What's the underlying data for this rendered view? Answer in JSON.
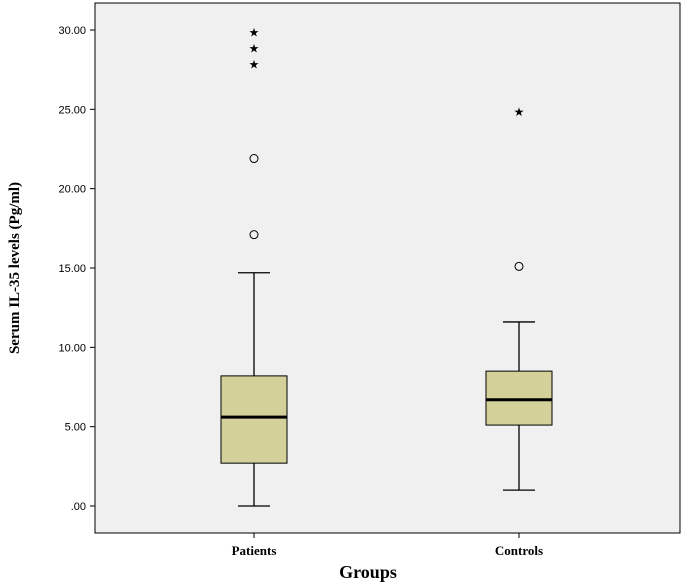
{
  "chart_data": {
    "type": "boxplot",
    "xlabel": "Groups",
    "ylabel": "Serum IL-35 levels (Pg/ml)",
    "ylim": [
      -2,
      32
    ],
    "yticks": [
      0,
      5,
      10,
      15,
      20,
      25,
      30
    ],
    "ytick_labels": [
      ".00",
      "5.00",
      "10.00",
      "15.00",
      "20.00",
      "25.00",
      "30.00"
    ],
    "grid": false,
    "colors": {
      "plot_background": "#f0f0f0",
      "box_fill": "#d4d09a",
      "stroke": "#000000"
    },
    "categories": [
      "Patients",
      "Controls"
    ],
    "boxes": [
      {
        "category": "Patients",
        "whisker_low": 0.0,
        "q1": 2.7,
        "median": 5.6,
        "q3": 8.2,
        "whisker_high": 14.7,
        "outliers": [
          17.1,
          21.9
        ],
        "extremes": [
          27.9,
          28.9,
          29.9
        ]
      },
      {
        "category": "Controls",
        "whisker_low": 1.0,
        "q1": 5.1,
        "median": 6.7,
        "q3": 8.5,
        "whisker_high": 11.6,
        "outliers": [
          15.1
        ],
        "extremes": [
          24.9
        ]
      }
    ]
  }
}
